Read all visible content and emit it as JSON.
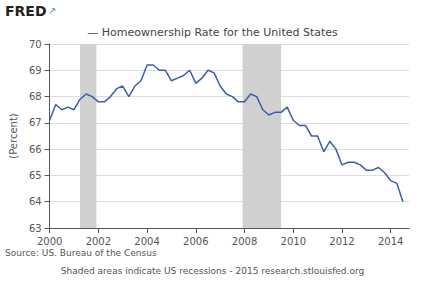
{
  "chart_data": {
    "type": "line",
    "title": "— Homeownership Rate for the United States",
    "ylabel": "(Percent)",
    "annotations": [
      "FRED",
      "↗",
      "Source: US. Bureau of the Census",
      "Shaded areas indicate US recessions - 2015 research.stlouisfed.org"
    ],
    "x": [
      2000.0,
      2000.25,
      2000.5,
      2000.75,
      2001.0,
      2001.25,
      2001.5,
      2001.75,
      2002.0,
      2002.25,
      2002.5,
      2002.75,
      2003.0,
      2003.25,
      2003.5,
      2003.75,
      2004.0,
      2004.25,
      2004.5,
      2004.75,
      2005.0,
      2005.25,
      2005.5,
      2005.75,
      2006.0,
      2006.25,
      2006.5,
      2006.75,
      2007.0,
      2007.25,
      2007.5,
      2007.75,
      2008.0,
      2008.25,
      2008.5,
      2008.75,
      2009.0,
      2009.25,
      2009.5,
      2009.75,
      2010.0,
      2010.25,
      2010.5,
      2010.75,
      2011.0,
      2011.25,
      2011.5,
      2011.75,
      2012.0,
      2012.25,
      2012.5,
      2012.75,
      2013.0,
      2013.25,
      2013.5,
      2013.75,
      2014.0,
      2014.25,
      2014.5
    ],
    "values": [
      67.1,
      67.7,
      67.5,
      67.6,
      67.5,
      67.9,
      68.1,
      68.0,
      67.8,
      67.8,
      68.0,
      68.3,
      68.4,
      68.0,
      68.4,
      68.6,
      69.2,
      69.2,
      69.0,
      69.0,
      68.6,
      68.7,
      68.8,
      69.0,
      68.5,
      68.7,
      69.0,
      68.9,
      68.4,
      68.1,
      68.0,
      67.8,
      67.8,
      68.1,
      68.0,
      67.5,
      67.3,
      67.4,
      67.4,
      67.6,
      67.1,
      66.9,
      66.9,
      66.5,
      66.5,
      65.9,
      66.3,
      66.0,
      65.4,
      65.5,
      65.5,
      65.4,
      65.2,
      65.2,
      65.3,
      65.1,
      64.8,
      64.7,
      64.0
    ],
    "color": "#3a5ea8",
    "xlim": [
      2000.0,
      2014.75
    ],
    "xticks": [
      2000,
      2002,
      2004,
      2006,
      2008,
      2010,
      2012,
      2014
    ],
    "ylim": [
      63,
      70
    ],
    "yticks": [
      63,
      64,
      65,
      66,
      67,
      68,
      69,
      70
    ],
    "grid": true,
    "recession_bands": [
      [
        2001.25,
        2001.92
      ],
      [
        2007.92,
        2009.5
      ]
    ],
    "recession_color": "#d0d0d0"
  }
}
